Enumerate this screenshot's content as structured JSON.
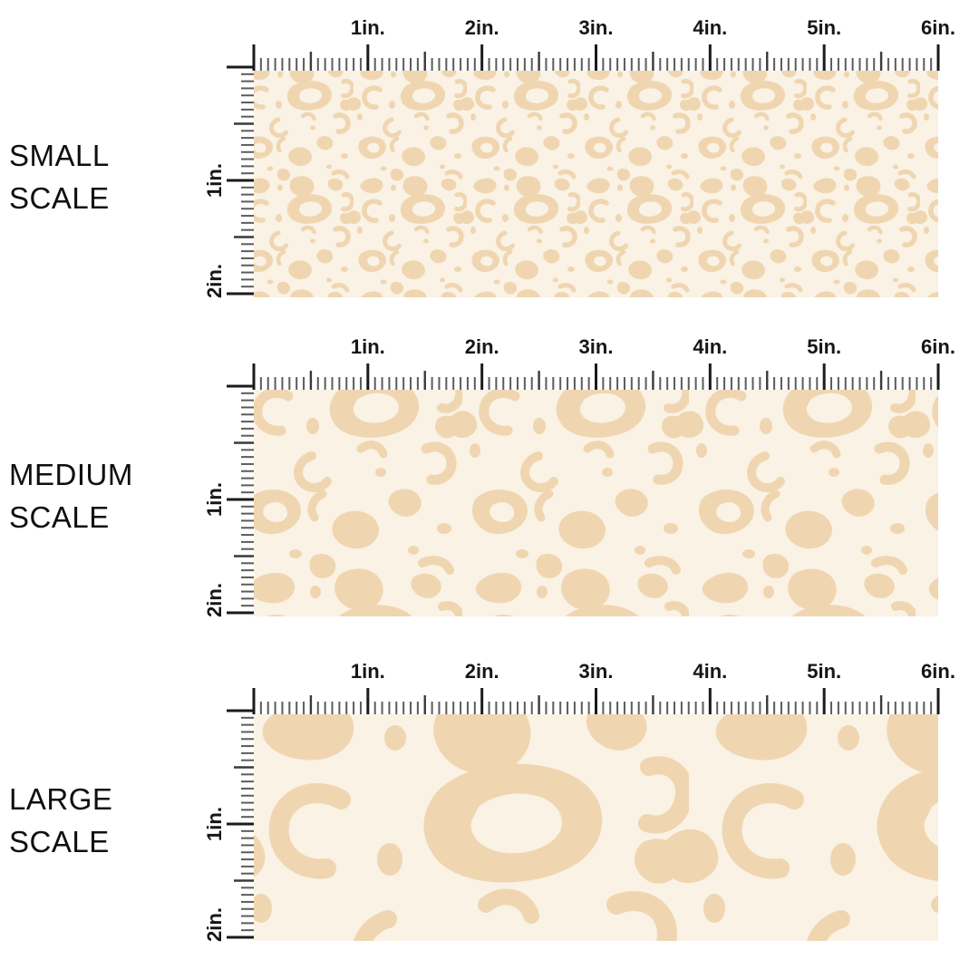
{
  "colors": {
    "page_background": "#ffffff",
    "fabric_base": "#faf2e4",
    "fabric_spot": "#efd6b1",
    "tick_inch": "#1b1b1b",
    "tick_half": "#3a3a3a",
    "tick_small": "#5c5c5c",
    "ruler_label": "#161616",
    "section_label": "#0f0f0f"
  },
  "rulers": {
    "horizontal_labels": [
      "1in.",
      "2in.",
      "3in.",
      "4in.",
      "5in.",
      "6in."
    ],
    "vertical_labels": [
      "1in.",
      "2in."
    ]
  },
  "sections": [
    {
      "name": "small-scale",
      "label_lines": [
        "SMALL",
        "SCALE"
      ]
    },
    {
      "name": "medium-scale",
      "label_lines": [
        "MEDIUM",
        "SCALE"
      ]
    },
    {
      "name": "large-scale",
      "label_lines": [
        "LARGE",
        "SCALE"
      ]
    }
  ]
}
